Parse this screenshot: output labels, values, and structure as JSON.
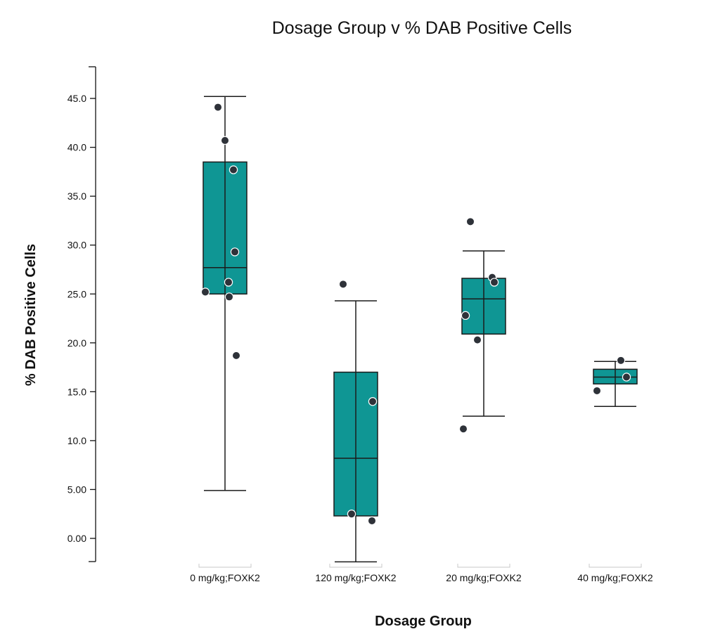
{
  "colors": {
    "box_fill": "#0f9694",
    "point": "#2e3239",
    "axis": "#111111"
  },
  "chart_data": {
    "type": "box",
    "title": "Dosage Group v % DAB Positive Cells",
    "xlabel": "Dosage Group",
    "ylabel": "% DAB Positive Cells",
    "ylim": [
      -2.4,
      48.4
    ],
    "yticks": [
      0,
      5,
      10,
      15,
      20,
      25,
      30,
      35,
      40,
      45
    ],
    "ytick_labels": [
      "0.00",
      "5.00",
      "10.0",
      "15.0",
      "20.0",
      "25.0",
      "30.0",
      "35.0",
      "40.0",
      "45.0"
    ],
    "grid": false,
    "categories": [
      "0 mg/kg;FOXK2",
      "120 mg/kg;FOXK2",
      "20 mg/kg;FOXK2",
      "40 mg/kg;FOXK2"
    ],
    "boxes": [
      {
        "whisker_low": 4.9,
        "q1": 25.0,
        "median": 27.7,
        "q3": 38.5,
        "whisker_high": 45.2
      },
      {
        "whisker_low": -2.4,
        "q1": 2.3,
        "median": 8.2,
        "q3": 17.0,
        "whisker_high": 24.3
      },
      {
        "whisker_low": 12.5,
        "q1": 20.9,
        "median": 24.5,
        "q3": 26.6,
        "whisker_high": 29.4
      },
      {
        "whisker_low": 13.5,
        "q1": 15.8,
        "median": 16.5,
        "q3": 17.3,
        "whisker_high": 18.1
      }
    ],
    "points": [
      [
        44.1,
        40.7,
        37.7,
        29.3,
        26.2,
        25.2,
        24.7,
        18.7
      ],
      [
        26.0,
        14.0,
        2.5,
        1.8
      ],
      [
        32.4,
        26.7,
        26.2,
        22.8,
        20.3,
        11.2
      ],
      [
        18.2,
        16.5,
        15.1
      ]
    ]
  }
}
